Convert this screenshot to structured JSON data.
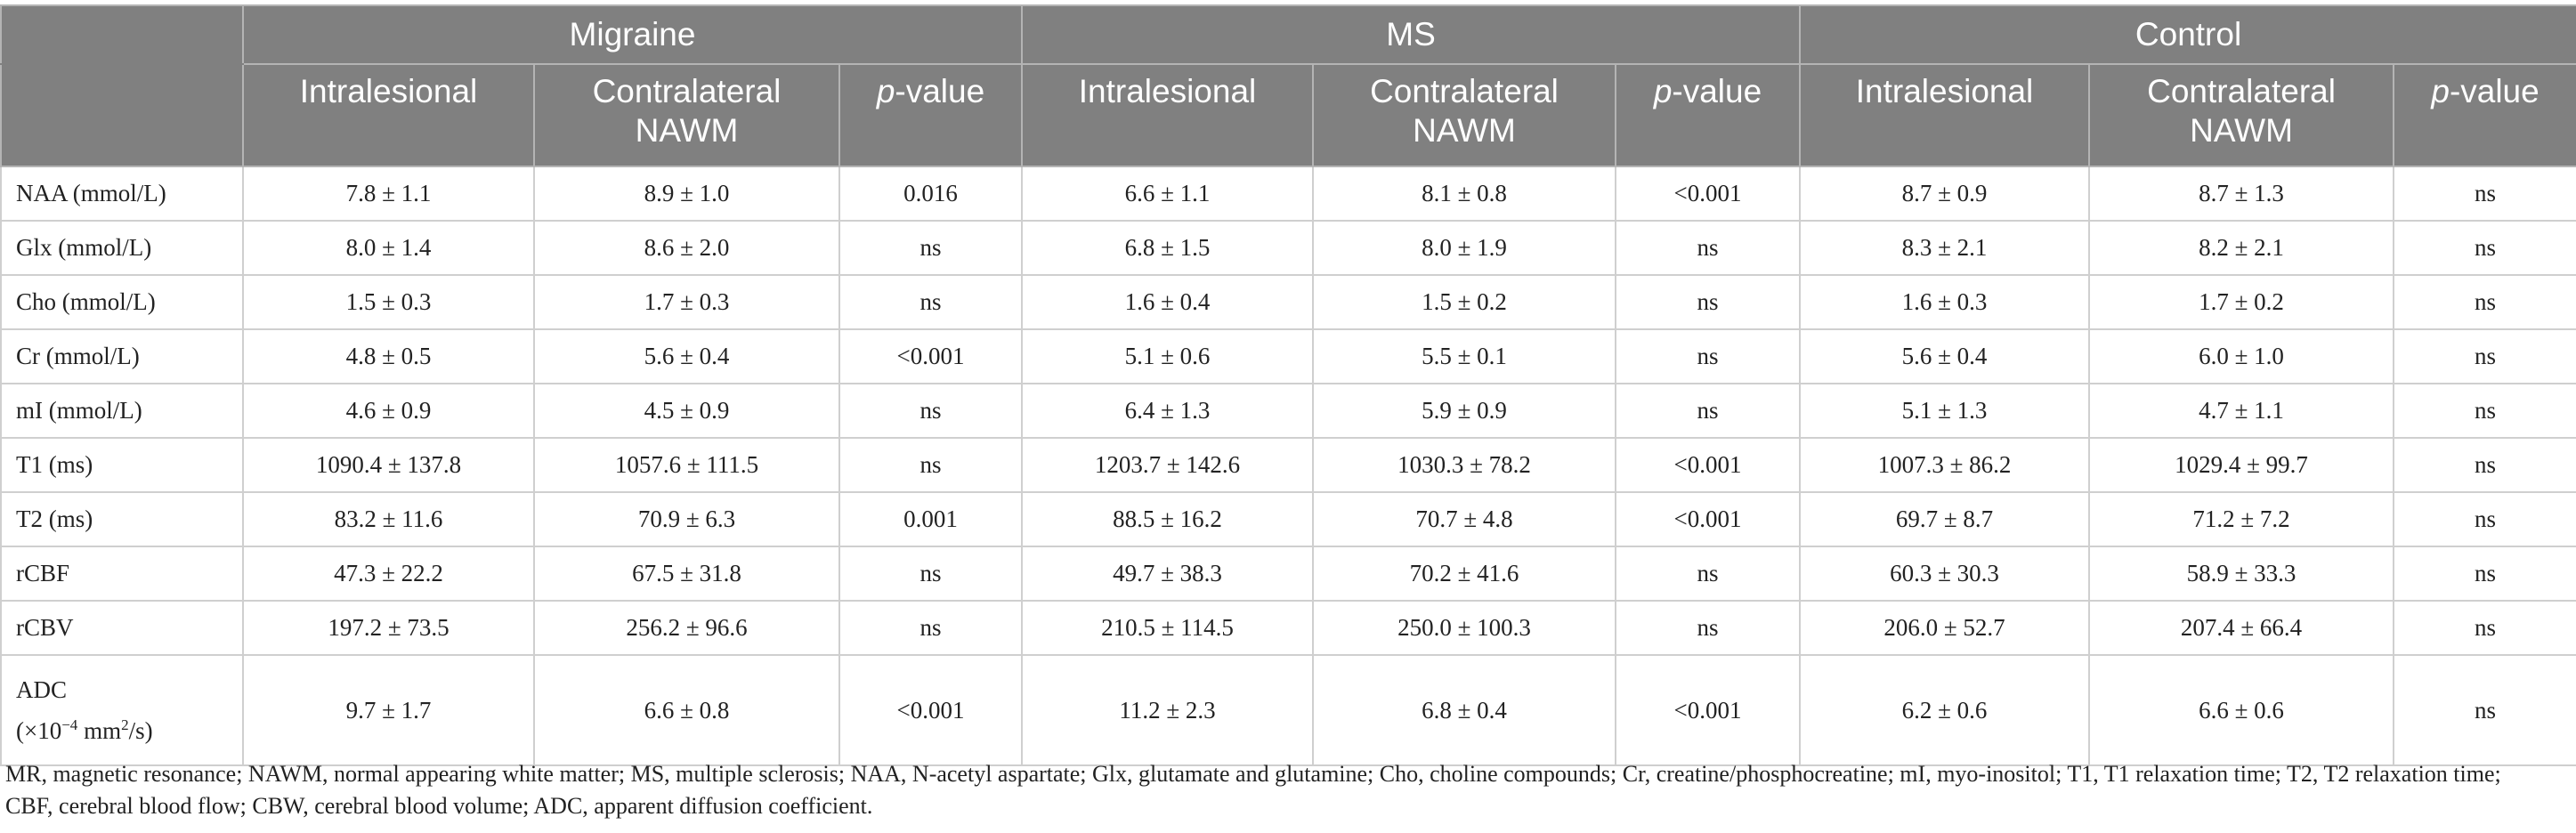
{
  "groups": [
    "Migraine",
    "MS",
    "Control"
  ],
  "subheaders": {
    "intralesional": "Intralesional",
    "contralateral_line1": "Contralateral",
    "contralateral_line2": "NAWM",
    "p_italic": "p",
    "p_rest": "-value"
  },
  "rows": [
    {
      "label": "NAA (mmol/L)",
      "cells": [
        "7.8 ± 1.1",
        "8.9 ± 1.0",
        "0.016",
        "6.6 ± 1.1",
        "8.1 ± 0.8",
        "<0.001",
        "8.7 ± 0.9",
        "8.7 ± 1.3",
        "ns"
      ]
    },
    {
      "label": "Glx (mmol/L)",
      "cells": [
        "8.0 ± 1.4",
        "8.6 ± 2.0",
        "ns",
        "6.8 ± 1.5",
        "8.0 ± 1.9",
        "ns",
        "8.3 ± 2.1",
        "8.2 ± 2.1",
        "ns"
      ]
    },
    {
      "label": "Cho (mmol/L)",
      "cells": [
        "1.5 ± 0.3",
        "1.7 ± 0.3",
        "ns",
        "1.6 ± 0.4",
        "1.5 ± 0.2",
        "ns",
        "1.6 ± 0.3",
        "1.7 ± 0.2",
        "ns"
      ]
    },
    {
      "label": "Cr (mmol/L)",
      "cells": [
        "4.8 ± 0.5",
        "5.6 ± 0.4",
        "<0.001",
        "5.1 ± 0.6",
        "5.5 ± 0.1",
        "ns",
        "5.6 ± 0.4",
        "6.0 ± 1.0",
        "ns"
      ]
    },
    {
      "label": "mI (mmol/L)",
      "cells": [
        "4.6 ± 0.9",
        "4.5 ± 0.9",
        "ns",
        "6.4 ± 1.3",
        "5.9 ± 0.9",
        "ns",
        "5.1 ± 1.3",
        "4.7 ± 1.1",
        "ns"
      ]
    },
    {
      "label": "T1 (ms)",
      "cells": [
        "1090.4 ± 137.8",
        "1057.6 ± 111.5",
        "ns",
        "1203.7 ± 142.6",
        "1030.3 ± 78.2",
        "<0.001",
        "1007.3 ± 86.2",
        "1029.4 ± 99.7",
        "ns"
      ]
    },
    {
      "label": "T2 (ms)",
      "cells": [
        "83.2 ± 11.6",
        "70.9 ± 6.3",
        "0.001",
        "88.5 ± 16.2",
        "70.7 ± 4.8",
        "<0.001",
        "69.7 ± 8.7",
        "71.2 ± 7.2",
        "ns"
      ]
    },
    {
      "label": "rCBF",
      "cells": [
        "47.3 ± 22.2",
        "67.5 ± 31.8",
        "ns",
        "49.7 ± 38.3",
        "70.2 ± 41.6",
        "ns",
        "60.3 ± 30.3",
        "58.9 ± 33.3",
        "ns"
      ]
    },
    {
      "label": "rCBV",
      "cells": [
        "197.2 ± 73.5",
        "256.2 ± 96.6",
        "ns",
        "210.5 ± 114.5",
        "250.0 ± 100.3",
        "ns",
        "206.0 ± 52.7",
        "207.4 ± 66.4",
        "ns"
      ]
    }
  ],
  "adc_row": {
    "label_line1": "ADC",
    "label_pre": "(×10",
    "label_exp": "−4",
    "label_mid": " mm",
    "label_exp2": "2",
    "label_post": "/s)",
    "cells": [
      "9.7 ± 1.7",
      "6.6 ± 0.8",
      "<0.001",
      "11.2 ± 2.3",
      "6.8 ± 0.4",
      "<0.001",
      "6.2 ± 0.6",
      "6.6 ± 0.6",
      "ns"
    ]
  },
  "footnote": {
    "line1": "MR, magnetic resonance; NAWM, normal appearing white matter; MS, multiple sclerosis; NAA, N-acetyl aspartate; Glx, glutamate and glutamine; Cho, choline compounds; Cr, creatine/phosphocreatine; mI, myo-inositol; T1, T1 relaxation time; T2, T2 relaxation time;",
    "line2": "CBF, cerebral blood flow; CBW, cerebral blood volume; ADC, apparent diffusion coefficient."
  }
}
